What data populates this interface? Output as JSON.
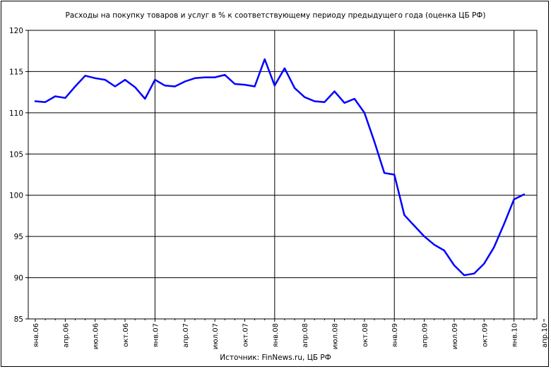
{
  "chart_data": {
    "type": "line",
    "title": "Расходы на покупку товаров и услуг в % к соответствующему периоду предыдущего года (оценка ЦБ РФ)",
    "source": "Источник: FinNews.ru, ЦБ РФ",
    "ylim": [
      85,
      120
    ],
    "yticks": [
      "120",
      "115",
      "110",
      "105",
      "100",
      "95",
      "90",
      "85"
    ],
    "grid": true,
    "xlabels": [
      "янв.06",
      "апр.06",
      "июл.06",
      "окт.06",
      "янв.07",
      "апр.07",
      "июл.07",
      "окт.07",
      "янв.08",
      "апр.08",
      "июл.08",
      "окт.08",
      "янв.09",
      "апр.09",
      "июл.09",
      "окт.09",
      "янв.10",
      "апр.10"
    ],
    "line_color": "#0000ff",
    "series": [
      {
        "x": [
          "янв.06",
          "фев.06",
          "мар.06",
          "апр.06",
          "май.06",
          "июн.06",
          "июл.06",
          "авг.06",
          "сен.06",
          "окт.06",
          "ноя.06",
          "дек.06",
          "янв.07",
          "фев.07",
          "мар.07",
          "апр.07",
          "май.07",
          "июн.07",
          "июл.07",
          "авг.07",
          "сен.07",
          "окт.07",
          "ноя.07",
          "дек.07",
          "янв.08",
          "фев.08",
          "мар.08",
          "апр.08",
          "май.08",
          "июн.08",
          "июл.08",
          "авг.08",
          "сен.08",
          "окт.08",
          "ноя.08",
          "дек.08",
          "янв.09",
          "фев.09",
          "мар.09",
          "апр.09",
          "май.09",
          "июн.09",
          "июл.09",
          "авг.09",
          "сен.09",
          "окт.09",
          "ноя.09",
          "дек.09",
          "янв.10",
          "фев.10"
        ],
        "values": [
          111.4,
          111.3,
          112.0,
          111.8,
          113.2,
          114.5,
          114.2,
          114.0,
          113.2,
          114.0,
          113.1,
          111.7,
          114.0,
          113.3,
          113.2,
          113.8,
          114.2,
          114.3,
          114.3,
          114.6,
          113.5,
          113.4,
          113.2,
          116.5,
          113.3,
          115.4,
          113.0,
          111.9,
          111.4,
          111.3,
          112.6,
          111.2,
          111.7,
          110.0,
          106.5,
          102.7,
          102.5,
          97.6,
          96.3,
          95.0,
          94.0,
          93.3,
          91.5,
          90.3,
          90.5,
          91.7,
          93.7,
          96.5,
          99.5,
          100.1
        ]
      }
    ]
  }
}
